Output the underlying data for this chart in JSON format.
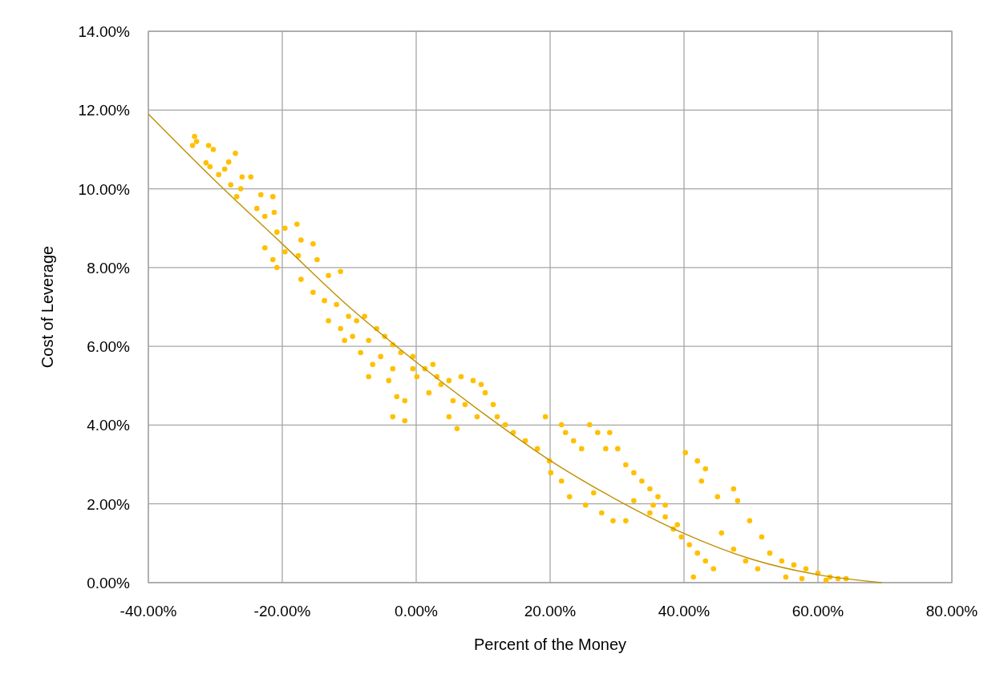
{
  "chart_data": {
    "type": "scatter",
    "xlabel": "Percent of the Money",
    "ylabel": "Cost of Leverage",
    "xlim": [
      -40,
      80
    ],
    "ylim": [
      0,
      14
    ],
    "xticks": [
      {
        "value": -40,
        "label": "-40.00%"
      },
      {
        "value": -20,
        "label": "-20.00%"
      },
      {
        "value": 0,
        "label": "0.00%"
      },
      {
        "value": 20,
        "label": "20.00%"
      },
      {
        "value": 40,
        "label": "40.00%"
      },
      {
        "value": 60,
        "label": "60.00%"
      },
      {
        "value": 80,
        "label": "80.00%"
      }
    ],
    "yticks": [
      {
        "value": 0,
        "label": "0.00%"
      },
      {
        "value": 2,
        "label": "2.00%"
      },
      {
        "value": 4,
        "label": "4.00%"
      },
      {
        "value": 6,
        "label": "6.00%"
      },
      {
        "value": 8,
        "label": "8.00%"
      },
      {
        "value": 10,
        "label": "10.00%"
      },
      {
        "value": 12,
        "label": "12.00%"
      },
      {
        "value": 14,
        "label": "14.00%"
      }
    ],
    "grid": true,
    "series": [
      {
        "marker": "circle",
        "color": "#ffc000",
        "x": [
          -33.1,
          -32.8,
          -33.4,
          -31,
          -30.3,
          -27,
          -31.4,
          -30.8,
          -28,
          -28.6,
          -29.5,
          -26,
          -24.7,
          -27.7,
          -26.2,
          -26.8,
          -23.2,
          -21.4,
          -23.8,
          -21.2,
          -22.6,
          -19.6,
          -20.8,
          -17.8,
          -17.2,
          -19.6,
          -22.6,
          -21.4,
          -20.8,
          -17.6,
          -15.4,
          -14.8,
          -13.1,
          -17.2,
          -15.4,
          -13.7,
          -11.9,
          -11.3,
          -10.1,
          -13.1,
          -11.3,
          -8.9,
          -7.7,
          -9.5,
          -10.7,
          -7.1,
          -8.3,
          -5.9,
          -4.7,
          -3.5,
          -2.3,
          -5.3,
          -6.5,
          -3.5,
          -7.1,
          -4.1,
          -2.9,
          -1.7,
          -3.5,
          -1.7,
          -0.5,
          -0.5,
          0.1,
          1.3,
          2.5,
          3.1,
          1.9,
          3.7,
          4.9,
          6.7,
          8.5,
          9.7,
          10.3,
          5.5,
          7.3,
          4.9,
          6.1,
          9.1,
          11.5,
          12.1,
          13.3,
          14.5,
          16.3,
          18.1,
          19.3,
          19.9,
          20.1,
          21.7,
          22.3,
          23.5,
          24.7,
          25.9,
          27.1,
          28.3,
          28.9,
          30.1,
          31.3,
          32.5,
          33.7,
          34.9,
          36.1,
          21.7,
          22.9,
          25.3,
          27.7,
          29.4,
          26.5,
          32.5,
          34.9,
          37.2,
          38.4,
          39.6,
          40.8,
          42,
          43.2,
          44.4,
          40.2,
          42,
          43.2,
          42.6,
          45,
          47.4,
          48,
          49.8,
          51.6,
          52.8,
          45.6,
          47.4,
          49.2,
          51,
          54.6,
          56.4,
          58.2,
          60,
          61.8,
          63,
          64.2,
          55.2,
          57.6,
          61.2,
          41.4,
          39,
          37.2,
          35.4,
          31.3
        ],
        "values": [
          11.33,
          11.2,
          11.1,
          11.1,
          11,
          10.9,
          10.66,
          10.56,
          10.68,
          10.5,
          10.36,
          10.3,
          10.3,
          10.1,
          10,
          9.8,
          9.85,
          9.8,
          9.5,
          9.4,
          9.3,
          9,
          8.9,
          9.1,
          8.7,
          8.4,
          8.5,
          8.2,
          8,
          8.3,
          8.6,
          8.2,
          7.8,
          7.7,
          7.37,
          7.16,
          7.06,
          7.9,
          6.76,
          6.65,
          6.45,
          6.65,
          6.76,
          6.25,
          6.15,
          6.15,
          5.84,
          6.45,
          6.25,
          6.04,
          5.84,
          5.74,
          5.54,
          5.43,
          5.23,
          5.13,
          4.72,
          4.62,
          4.21,
          4.11,
          5.74,
          5.43,
          5.23,
          5.43,
          5.54,
          5.23,
          4.82,
          5.03,
          5.13,
          5.23,
          5.13,
          5.03,
          4.82,
          4.62,
          4.52,
          4.21,
          3.91,
          4.21,
          4.52,
          4.21,
          4.01,
          3.81,
          3.6,
          3.4,
          4.21,
          3.09,
          2.79,
          4.01,
          3.81,
          3.6,
          3.4,
          4.01,
          3.81,
          3.4,
          3.81,
          3.4,
          2.99,
          2.79,
          2.58,
          2.38,
          2.18,
          2.58,
          2.18,
          1.97,
          1.77,
          1.57,
          2.28,
          2.08,
          1.77,
          1.67,
          1.36,
          1.16,
          0.96,
          0.75,
          0.55,
          0.35,
          3.3,
          3.09,
          2.89,
          2.58,
          2.18,
          2.38,
          2.08,
          1.57,
          1.16,
          0.75,
          1.26,
          0.85,
          0.55,
          0.35,
          0.55,
          0.45,
          0.35,
          0.24,
          0.14,
          0.1,
          0.1,
          0.14,
          0.1,
          0.06,
          0.14,
          1.47,
          1.97,
          1.97,
          1.57
        ]
      },
      {
        "type": "line",
        "marker": "none",
        "line_style": "solid",
        "color": "#bf9000",
        "x": [
          -40,
          -30,
          -20,
          -10,
          0,
          10,
          20,
          30,
          40,
          50,
          60,
          69.5
        ],
        "values": [
          11.9,
          10.2,
          8.6,
          7,
          5.6,
          4.3,
          3.1,
          2.1,
          1.25,
          0.6,
          0.2,
          0
        ]
      }
    ]
  }
}
